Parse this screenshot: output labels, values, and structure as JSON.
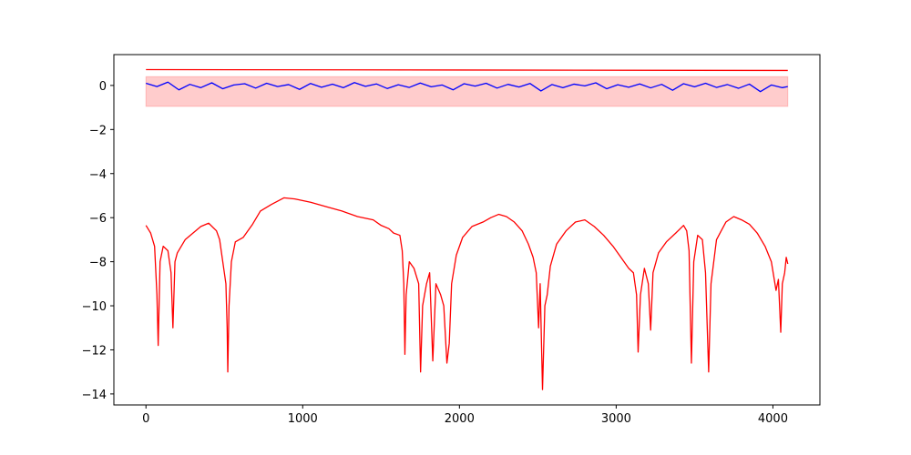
{
  "chart_data": {
    "type": "line",
    "xlim": [
      -204.75,
      4299.75
    ],
    "ylim": [
      -14.5,
      1.4
    ],
    "xticks": [
      0,
      1000,
      2000,
      3000,
      4000
    ],
    "yticks": [
      {
        "value": -14,
        "label": "−14"
      },
      {
        "value": -12,
        "label": "−12"
      },
      {
        "value": -10,
        "label": "−10"
      },
      {
        "value": -8,
        "label": "−8"
      },
      {
        "value": -6,
        "label": "−6"
      },
      {
        "value": -4,
        "label": "−4"
      },
      {
        "value": -2,
        "label": "−2"
      },
      0
    ],
    "grid": false,
    "series": [
      {
        "kind": "fill",
        "color": "#ff0000",
        "opacity": 0.2,
        "x": [
          0,
          4095
        ],
        "values": [
          0.4,
          0.4
        ],
        "lower": [
          -0.95,
          -0.95
        ]
      },
      {
        "color": "#ff0000",
        "x": [
          0,
          4095
        ],
        "values": [
          0.72,
          0.68
        ]
      },
      {
        "color": "#0000ff",
        "x": [
          0,
          70,
          140,
          210,
          280,
          350,
          420,
          490,
          560,
          630,
          700,
          770,
          840,
          910,
          980,
          1050,
          1120,
          1190,
          1260,
          1330,
          1400,
          1470,
          1540,
          1610,
          1680,
          1750,
          1820,
          1890,
          1960,
          2030,
          2100,
          2170,
          2240,
          2310,
          2380,
          2450,
          2520,
          2590,
          2660,
          2730,
          2800,
          2870,
          2940,
          3010,
          3080,
          3150,
          3220,
          3290,
          3360,
          3430,
          3500,
          3570,
          3640,
          3710,
          3780,
          3850,
          3920,
          3990,
          4060,
          4095
        ],
        "values": [
          0.1,
          -0.05,
          0.15,
          -0.2,
          0.05,
          -0.1,
          0.12,
          -0.15,
          0.02,
          0.08,
          -0.12,
          0.1,
          -0.05,
          0.04,
          -0.18,
          0.09,
          -0.08,
          0.06,
          -0.1,
          0.13,
          -0.04,
          0.07,
          -0.14,
          0.03,
          -0.09,
          0.11,
          -0.06,
          0.02,
          -0.2,
          0.08,
          -0.03,
          0.1,
          -0.12,
          0.05,
          -0.07,
          0.09,
          -0.25,
          0.04,
          -0.1,
          0.06,
          -0.02,
          0.12,
          -0.15,
          0.03,
          -0.08,
          0.07,
          -0.11,
          0.05,
          -0.22,
          0.08,
          -0.06,
          0.1,
          -0.09,
          0.04,
          -0.13,
          0.06,
          -0.28,
          0.02,
          -0.1,
          -0.05
        ]
      },
      {
        "color": "#ff0000",
        "x": [
          0,
          30,
          55,
          70,
          78,
          90,
          110,
          140,
          160,
          172,
          185,
          200,
          250,
          300,
          350,
          400,
          450,
          470,
          480,
          500,
          510,
          518,
          522,
          530,
          545,
          570,
          620,
          680,
          730,
          800,
          880,
          950,
          1050,
          1150,
          1250,
          1350,
          1450,
          1500,
          1550,
          1580,
          1620,
          1635,
          1645,
          1652,
          1660,
          1680,
          1710,
          1740,
          1752,
          1765,
          1790,
          1810,
          1830,
          1850,
          1880,
          1900,
          1920,
          1935,
          1950,
          1980,
          2020,
          2080,
          2150,
          2200,
          2250,
          2300,
          2350,
          2400,
          2440,
          2470,
          2490,
          2505,
          2515,
          2530,
          2545,
          2560,
          2580,
          2620,
          2680,
          2740,
          2800,
          2860,
          2920,
          2980,
          3030,
          3080,
          3110,
          3130,
          3140,
          3155,
          3180,
          3205,
          3220,
          3235,
          3270,
          3320,
          3380,
          3430,
          3450,
          3465,
          3480,
          3495,
          3520,
          3550,
          3570,
          3590,
          3605,
          3640,
          3700,
          3750,
          3800,
          3850,
          3900,
          3950,
          3990,
          4020,
          4035,
          4050,
          4060,
          4075,
          4085,
          4095
        ],
        "values": [
          -6.35,
          -6.7,
          -7.3,
          -9.5,
          -11.8,
          -8,
          -7.3,
          -7.5,
          -8.5,
          -11,
          -8,
          -7.6,
          -7,
          -6.7,
          -6.4,
          -6.25,
          -6.6,
          -7,
          -7.5,
          -8.5,
          -9,
          -11,
          -13,
          -10,
          -8,
          -7.1,
          -6.9,
          -6.3,
          -5.7,
          -5.4,
          -5.1,
          -5.15,
          -5.3,
          -5.5,
          -5.7,
          -5.95,
          -6.1,
          -6.35,
          -6.5,
          -6.7,
          -6.8,
          -7.5,
          -9,
          -12.2,
          -9.5,
          -8,
          -8.3,
          -9,
          -13,
          -10,
          -9,
          -8.5,
          -12.5,
          -9,
          -9.5,
          -10,
          -12.6,
          -11.7,
          -9,
          -7.7,
          -6.9,
          -6.4,
          -6.2,
          -6,
          -5.85,
          -5.95,
          -6.2,
          -6.6,
          -7.2,
          -7.8,
          -8.5,
          -11,
          -9,
          -13.8,
          -10,
          -9.5,
          -8.2,
          -7.2,
          -6.6,
          -6.2,
          -6.1,
          -6.4,
          -6.8,
          -7.3,
          -7.8,
          -8.3,
          -8.5,
          -9.5,
          -12.1,
          -9.5,
          -8.3,
          -9,
          -11.1,
          -8.5,
          -7.6,
          -7.1,
          -6.7,
          -6.35,
          -6.6,
          -7.5,
          -12.6,
          -8,
          -6.8,
          -7,
          -8.5,
          -13,
          -9,
          -7,
          -6.2,
          -5.95,
          -6.1,
          -6.3,
          -6.7,
          -7.3,
          -8,
          -9.3,
          -8.8,
          -11.2,
          -9,
          -8.5,
          -7.8,
          -8.1
        ]
      }
    ]
  }
}
